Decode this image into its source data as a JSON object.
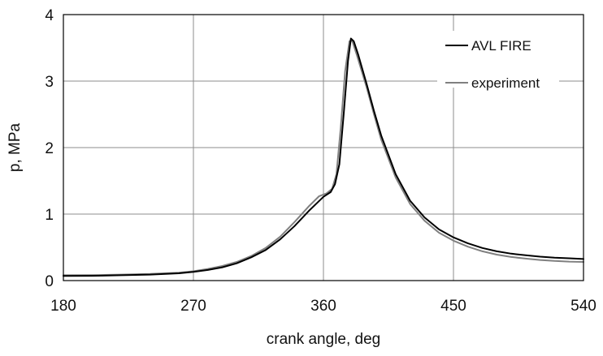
{
  "chart_data": {
    "type": "line",
    "title": "",
    "xlabel": "crank angle, deg",
    "ylabel": "p, MPa",
    "xlim": [
      180,
      540
    ],
    "ylim": [
      0,
      4
    ],
    "xticks": [
      180,
      270,
      360,
      450,
      540
    ],
    "yticks": [
      0,
      1,
      2,
      3,
      4
    ],
    "grid": true,
    "legend_position": "top-right",
    "series": [
      {
        "name": "AVL FIRE",
        "color": "#000000",
        "points": [
          [
            180,
            0.07
          ],
          [
            200,
            0.072
          ],
          [
            220,
            0.08
          ],
          [
            240,
            0.09
          ],
          [
            260,
            0.11
          ],
          [
            270,
            0.13
          ],
          [
            280,
            0.16
          ],
          [
            290,
            0.2
          ],
          [
            300,
            0.26
          ],
          [
            310,
            0.35
          ],
          [
            320,
            0.46
          ],
          [
            330,
            0.62
          ],
          [
            340,
            0.82
          ],
          [
            350,
            1.05
          ],
          [
            360,
            1.26
          ],
          [
            365,
            1.33
          ],
          [
            368,
            1.45
          ],
          [
            371,
            1.75
          ],
          [
            374,
            2.5
          ],
          [
            377,
            3.3
          ],
          [
            379,
            3.64
          ],
          [
            381,
            3.6
          ],
          [
            384,
            3.4
          ],
          [
            390,
            2.95
          ],
          [
            395,
            2.55
          ],
          [
            400,
            2.18
          ],
          [
            410,
            1.6
          ],
          [
            420,
            1.2
          ],
          [
            430,
            0.95
          ],
          [
            440,
            0.77
          ],
          [
            450,
            0.65
          ],
          [
            460,
            0.56
          ],
          [
            470,
            0.49
          ],
          [
            480,
            0.44
          ],
          [
            490,
            0.405
          ],
          [
            500,
            0.38
          ],
          [
            510,
            0.36
          ],
          [
            520,
            0.345
          ],
          [
            530,
            0.335
          ],
          [
            540,
            0.325
          ]
        ]
      },
      {
        "name": "experiment",
        "color": "#808080",
        "points": [
          [
            180,
            0.08
          ],
          [
            200,
            0.082
          ],
          [
            220,
            0.09
          ],
          [
            240,
            0.1
          ],
          [
            260,
            0.12
          ],
          [
            270,
            0.14
          ],
          [
            280,
            0.175
          ],
          [
            290,
            0.22
          ],
          [
            300,
            0.28
          ],
          [
            310,
            0.37
          ],
          [
            320,
            0.49
          ],
          [
            330,
            0.66
          ],
          [
            340,
            0.88
          ],
          [
            350,
            1.12
          ],
          [
            357,
            1.27
          ],
          [
            362,
            1.31
          ],
          [
            366,
            1.38
          ],
          [
            369,
            1.6
          ],
          [
            372,
            2.3
          ],
          [
            375,
            3.15
          ],
          [
            378,
            3.6
          ],
          [
            380,
            3.6
          ],
          [
            383,
            3.4
          ],
          [
            390,
            2.9
          ],
          [
            395,
            2.5
          ],
          [
            400,
            2.12
          ],
          [
            410,
            1.55
          ],
          [
            420,
            1.15
          ],
          [
            430,
            0.9
          ],
          [
            440,
            0.72
          ],
          [
            450,
            0.6
          ],
          [
            460,
            0.51
          ],
          [
            470,
            0.44
          ],
          [
            480,
            0.39
          ],
          [
            490,
            0.355
          ],
          [
            500,
            0.33
          ],
          [
            510,
            0.31
          ],
          [
            520,
            0.295
          ],
          [
            530,
            0.285
          ],
          [
            540,
            0.28
          ]
        ]
      }
    ]
  }
}
